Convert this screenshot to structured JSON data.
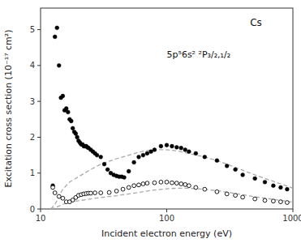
{
  "chart_data": {
    "type": "scatter",
    "xlabel": "Incident electron energy (eV)",
    "ylabel": "Excitation cross section (10⁻¹⁷ cm²)",
    "annotations": [
      "Cs",
      "5p⁵6s² ²P₃/₂,₁/₂"
    ],
    "log": "x",
    "grid": false,
    "xlim": [
      10,
      1000
    ],
    "ylim": [
      0,
      5.6
    ],
    "xticks": [
      10,
      100,
      1000
    ],
    "yticks": [
      0,
      1,
      2,
      3,
      4,
      5
    ],
    "series": [
      {
        "type": "scatter",
        "marker": "circle",
        "color": "#000000",
        "x": [
          12.5,
          13.0,
          13.5,
          14.0,
          14.5,
          15.0,
          15.5,
          16.0,
          16.5,
          17.0,
          17.5,
          18.0,
          18.5,
          19.0,
          19.5,
          20.0,
          20.5,
          21.0,
          21.5,
          22.0,
          22.5,
          23.0,
          23.5,
          24.0,
          25.0,
          26.0,
          27.0,
          28.0,
          30.0,
          32.0,
          34.0,
          36.0,
          38.0,
          40.0,
          42.0,
          44.0,
          46.0,
          50.0,
          55.0,
          60.0,
          65.0,
          70.0,
          75.0,
          80.0,
          90.0,
          100.0,
          110.0,
          120.0,
          130.0,
          140.0,
          150.0,
          170.0,
          200.0,
          250.0,
          300.0,
          350.0,
          400.0,
          500.0,
          600.0,
          700.0,
          800.0,
          900.0
        ],
        "values": [
          0.65,
          4.8,
          5.05,
          4.0,
          3.1,
          3.15,
          2.75,
          2.8,
          2.7,
          2.5,
          2.45,
          2.25,
          2.15,
          2.1,
          2.0,
          1.9,
          1.85,
          1.8,
          1.8,
          1.75,
          1.75,
          1.75,
          1.72,
          1.7,
          1.65,
          1.6,
          1.55,
          1.5,
          1.45,
          1.25,
          1.1,
          1.0,
          0.95,
          0.92,
          0.9,
          0.9,
          0.88,
          1.05,
          1.3,
          1.45,
          1.5,
          1.55,
          1.6,
          1.65,
          1.75,
          1.78,
          1.75,
          1.72,
          1.7,
          1.65,
          1.6,
          1.55,
          1.45,
          1.35,
          1.2,
          1.1,
          0.95,
          0.85,
          0.75,
          0.65,
          0.6,
          0.55
        ]
      },
      {
        "type": "scatter",
        "marker": "open_circle",
        "color": "#000000",
        "x": [
          12.5,
          13.0,
          14.0,
          15.0,
          16.0,
          17.0,
          18.0,
          19.0,
          20.0,
          21.0,
          22.0,
          23.0,
          24.0,
          25.0,
          27.0,
          30.0,
          35.0,
          40.0,
          45.0,
          50.0,
          55.0,
          60.0,
          65.0,
          70.0,
          80.0,
          90.0,
          100.0,
          110.0,
          120.0,
          130.0,
          140.0,
          150.0,
          170.0,
          200.0,
          250.0,
          300.0,
          350.0,
          400.0,
          500.0,
          600.0,
          700.0,
          800.0,
          900.0
        ],
        "values": [
          0.6,
          0.45,
          0.35,
          0.3,
          0.2,
          0.2,
          0.25,
          0.32,
          0.38,
          0.4,
          0.42,
          0.43,
          0.44,
          0.44,
          0.45,
          0.45,
          0.46,
          0.5,
          0.55,
          0.6,
          0.65,
          0.67,
          0.7,
          0.72,
          0.73,
          0.75,
          0.75,
          0.73,
          0.72,
          0.7,
          0.68,
          0.65,
          0.6,
          0.55,
          0.48,
          0.42,
          0.38,
          0.33,
          0.28,
          0.24,
          0.22,
          0.2,
          0.18
        ]
      },
      {
        "type": "line",
        "line_style": "dashed",
        "color": "#aaaaaa",
        "x": [
          12.0,
          13.0,
          14.0,
          15.0,
          17.0,
          20.0,
          25.0,
          30.0,
          40.0,
          50.0,
          60.0,
          70.0,
          80.0,
          100.0,
          120.0,
          150.0,
          200.0,
          250.0,
          300.0,
          400.0,
          500.0,
          600.0,
          700.0,
          800.0,
          1000.0
        ],
        "values": [
          0.0,
          0.12,
          0.35,
          0.55,
          0.75,
          0.9,
          1.1,
          1.25,
          1.4,
          1.5,
          1.58,
          1.63,
          1.65,
          1.65,
          1.62,
          1.55,
          1.45,
          1.35,
          1.25,
          1.08,
          0.95,
          0.85,
          0.77,
          0.7,
          0.58
        ]
      },
      {
        "type": "line",
        "line_style": "dashed",
        "color": "#aaaaaa",
        "x": [
          12.0,
          13.0,
          14.0,
          15.0,
          17.0,
          20.0,
          25.0,
          30.0,
          40.0,
          50.0,
          60.0,
          70.0,
          80.0,
          100.0,
          120.0,
          150.0,
          200.0,
          250.0,
          300.0,
          400.0,
          500.0,
          600.0,
          700.0,
          800.0,
          1000.0
        ],
        "values": [
          0.0,
          0.03,
          0.08,
          0.13,
          0.19,
          0.23,
          0.28,
          0.32,
          0.37,
          0.42,
          0.46,
          0.5,
          0.53,
          0.56,
          0.58,
          0.58,
          0.55,
          0.51,
          0.47,
          0.4,
          0.34,
          0.3,
          0.27,
          0.24,
          0.19
        ]
      }
    ]
  }
}
